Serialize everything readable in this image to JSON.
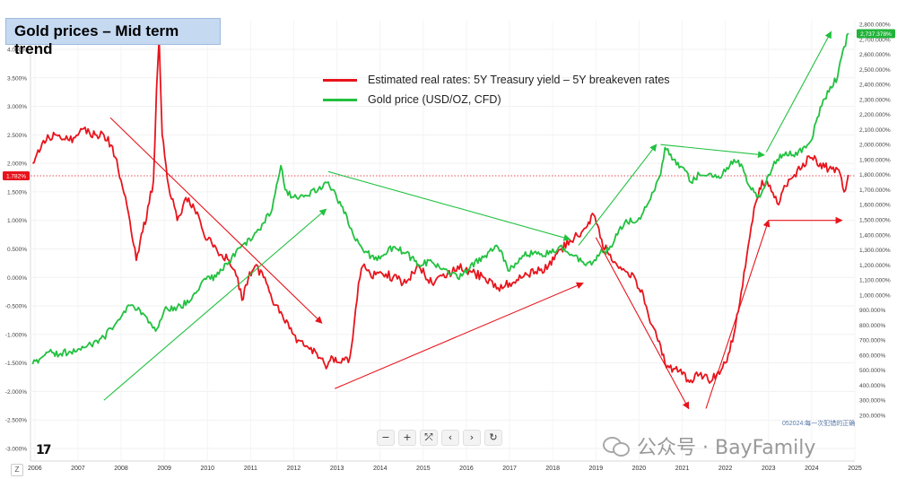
{
  "title": "Gold prices – Mid term trend",
  "toolbar": {
    "minus": "−",
    "plus": "+",
    "crosshair": "⤱",
    "back": "‹",
    "forward": "›",
    "reset": "↻"
  },
  "logo_text": "17",
  "zoom_button": "Z",
  "watermark": "公众号 · BayFamily",
  "bottom_note": "052024:每一次犯错的正确",
  "chart_data": {
    "type": "line",
    "title": "Gold prices – Mid term trend",
    "x_ticks": [
      "2006",
      "2007",
      "2008",
      "2009",
      "2010",
      "2011",
      "2012",
      "2013",
      "2014",
      "2015",
      "2016",
      "2017",
      "2018",
      "2019",
      "2020",
      "2021",
      "2022",
      "2023",
      "2024",
      "2025"
    ],
    "xlim": [
      2005.9,
      2025.0
    ],
    "left_axis": {
      "ticks": [
        "4.000%",
        "3.500%",
        "3.000%",
        "2.500%",
        "2.000%",
        "1.500%",
        "1.000%",
        "0.500%",
        "0.000%",
        "-0.500%",
        "-1.000%",
        "-1.500%",
        "-2.000%",
        "-2.500%",
        "-3.000%"
      ],
      "range": [
        -3.0,
        4.0
      ],
      "current_label": "1.782%",
      "current_value": 1.782
    },
    "right_axis": {
      "ticks": [
        "2,800.000%",
        "2,700.000%",
        "2,600.000%",
        "2,500.000%",
        "2,400.000%",
        "2,300.000%",
        "2,200.000%",
        "2,100.000%",
        "2,000.000%",
        "1,900.000%",
        "1,800.000%",
        "1,700.000%",
        "1,600.000%",
        "1,500.000%",
        "1,400.000%",
        "1,300.000%",
        "1,200.000%",
        "1,100.000%",
        "1,000.000%",
        "900.000%",
        "800.000%",
        "700.000%",
        "600.000%",
        "500.000%",
        "400.000%",
        "300.000%",
        "200.000%"
      ],
      "range": [
        200,
        2800
      ],
      "current_label": "2,737.378%",
      "current_value": 2737.378
    },
    "legend": [
      {
        "name": "Estimated real rates: 5Y Treasury yield – 5Y breakeven rates",
        "color": "#e8141c"
      },
      {
        "name": "Gold price (USD/OZ, CFD)",
        "color": "#22c140"
      }
    ],
    "series": [
      {
        "name": "Estimated real rates: 5Y Treasury yield – 5Y breakeven rates",
        "axis": "left",
        "color": "#e8141c",
        "x": [
          2005.95,
          2006.2,
          2006.5,
          2006.8,
          2007.1,
          2007.4,
          2007.6,
          2007.8,
          2008.0,
          2008.2,
          2008.35,
          2008.5,
          2008.65,
          2008.75,
          2008.82,
          2008.88,
          2008.95,
          2009.1,
          2009.3,
          2009.5,
          2009.7,
          2009.9,
          2010.1,
          2010.3,
          2010.5,
          2010.7,
          2010.8,
          2010.95,
          2011.1,
          2011.3,
          2011.5,
          2011.7,
          2011.9,
          2012.1,
          2012.3,
          2012.5,
          2012.7,
          2012.75,
          2012.9,
          2013.1,
          2013.3,
          2013.4,
          2013.5,
          2013.6,
          2013.8,
          2014.0,
          2014.3,
          2014.6,
          2014.9,
          2015.2,
          2015.5,
          2015.8,
          2016.1,
          2016.4,
          2016.7,
          2017.0,
          2017.3,
          2017.6,
          2017.9,
          2018.2,
          2018.5,
          2018.8,
          2018.95,
          2019.1,
          2019.3,
          2019.5,
          2019.7,
          2019.9,
          2020.0,
          2020.1,
          2020.2,
          2020.35,
          2020.5,
          2020.6,
          2020.8,
          2021.0,
          2021.2,
          2021.4,
          2021.6,
          2021.8,
          2022.0,
          2022.1,
          2022.3,
          2022.5,
          2022.6,
          2022.7,
          2022.85,
          2023.0,
          2023.2,
          2023.4,
          2023.6,
          2023.8,
          2024.0,
          2024.2,
          2024.4,
          2024.6,
          2024.75,
          2024.85
        ],
        "y": [
          2.0,
          2.4,
          2.5,
          2.4,
          2.6,
          2.5,
          2.5,
          2.3,
          1.7,
          1.0,
          0.3,
          0.8,
          1.3,
          1.7,
          3.3,
          4.2,
          2.5,
          1.6,
          1.0,
          1.4,
          1.2,
          0.8,
          0.6,
          0.4,
          0.3,
          0.0,
          -0.4,
          0.0,
          0.2,
          0.0,
          -0.4,
          -0.6,
          -0.9,
          -1.1,
          -1.2,
          -1.3,
          -1.5,
          -1.6,
          -1.4,
          -1.5,
          -1.4,
          -0.8,
          -0.1,
          0.2,
          0.0,
          0.1,
          0.0,
          -0.1,
          0.2,
          -0.1,
          0.0,
          0.2,
          0.1,
          0.0,
          -0.2,
          -0.1,
          0.0,
          0.1,
          0.2,
          0.5,
          0.7,
          0.9,
          1.1,
          0.7,
          0.4,
          0.2,
          0.1,
          0.0,
          -0.2,
          -0.3,
          -0.6,
          -0.9,
          -1.2,
          -1.5,
          -1.6,
          -1.7,
          -1.8,
          -1.7,
          -1.8,
          -1.7,
          -1.5,
          -1.3,
          -0.6,
          0.4,
          0.9,
          1.3,
          1.7,
          1.6,
          1.3,
          1.6,
          1.8,
          2.0,
          2.1,
          2.0,
          1.9,
          1.9,
          1.5,
          1.8
        ]
      },
      {
        "name": "Gold price (USD/OZ, CFD)",
        "axis": "right",
        "color": "#22c140",
        "x": [
          2005.95,
          2006.3,
          2006.6,
          2007.0,
          2007.3,
          2007.6,
          2007.9,
          2008.2,
          2008.5,
          2008.8,
          2009.0,
          2009.3,
          2009.6,
          2009.9,
          2010.2,
          2010.5,
          2010.8,
          2011.0,
          2011.3,
          2011.5,
          2011.7,
          2011.8,
          2012.0,
          2012.3,
          2012.6,
          2012.8,
          2013.0,
          2013.2,
          2013.4,
          2013.6,
          2013.8,
          2014.0,
          2014.3,
          2014.6,
          2014.9,
          2015.2,
          2015.5,
          2015.8,
          2016.1,
          2016.4,
          2016.7,
          2017.0,
          2017.3,
          2017.6,
          2017.9,
          2018.2,
          2018.5,
          2018.7,
          2018.9,
          2019.1,
          2019.3,
          2019.5,
          2019.7,
          2019.9,
          2020.1,
          2020.3,
          2020.5,
          2020.6,
          2020.8,
          2021.0,
          2021.2,
          2021.4,
          2021.6,
          2021.8,
          2022.0,
          2022.2,
          2022.4,
          2022.6,
          2022.8,
          2023.0,
          2023.2,
          2023.4,
          2023.6,
          2023.8,
          2024.0,
          2024.2,
          2024.4,
          2024.6,
          2024.75,
          2024.85
        ],
        "y": [
          540,
          620,
          610,
          640,
          670,
          720,
          820,
          930,
          880,
          760,
          900,
          920,
          960,
          1100,
          1120,
          1220,
          1330,
          1360,
          1480,
          1570,
          1860,
          1700,
          1650,
          1660,
          1720,
          1750,
          1640,
          1550,
          1380,
          1300,
          1260,
          1240,
          1320,
          1280,
          1200,
          1220,
          1170,
          1110,
          1200,
          1250,
          1330,
          1160,
          1260,
          1290,
          1270,
          1330,
          1260,
          1220,
          1200,
          1280,
          1300,
          1400,
          1500,
          1480,
          1550,
          1680,
          1800,
          1980,
          1900,
          1850,
          1750,
          1800,
          1800,
          1780,
          1820,
          1900,
          1850,
          1700,
          1650,
          1800,
          1900,
          1950,
          1920,
          1980,
          2030,
          2250,
          2350,
          2450,
          2650,
          2740
        ]
      }
    ],
    "trend_arrows": [
      {
        "color": "#e8141c",
        "from": [
          2007.75,
          2.8
        ],
        "to": [
          2012.65,
          -0.8
        ]
      },
      {
        "color": "#e8141c",
        "from": [
          2012.95,
          -1.95
        ],
        "to": [
          2018.7,
          -0.1
        ]
      },
      {
        "color": "#e8141c",
        "from": [
          2019.0,
          0.7
        ],
        "to": [
          2021.15,
          -2.3
        ]
      },
      {
        "color": "#e8141c",
        "from": [
          2021.55,
          -2.3
        ],
        "to": [
          2023.0,
          1.0
        ]
      },
      {
        "color": "#e8141c",
        "from": [
          2023.0,
          1.0
        ],
        "to": [
          2024.7,
          1.0
        ]
      },
      {
        "color": "#22c140",
        "from": [
          2007.6,
          300
        ],
        "to": [
          2012.75,
          1570
        ],
        "axis": "right"
      },
      {
        "color": "#22c140",
        "from": [
          2012.8,
          1820
        ],
        "to": [
          2018.4,
          1370
        ],
        "axis": "right"
      },
      {
        "color": "#22c140",
        "from": [
          2018.6,
          1330
        ],
        "to": [
          2020.4,
          2000
        ],
        "axis": "right"
      },
      {
        "color": "#22c140",
        "from": [
          2020.5,
          2000
        ],
        "to": [
          2022.9,
          1930
        ],
        "axis": "right"
      },
      {
        "color": "#22c140",
        "from": [
          2022.95,
          1950
        ],
        "to": [
          2024.45,
          2750
        ],
        "axis": "right"
      }
    ]
  }
}
